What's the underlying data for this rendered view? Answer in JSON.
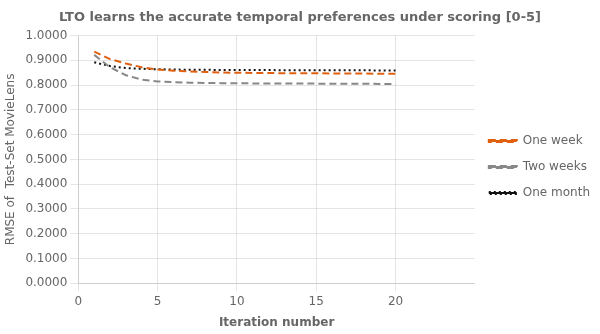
{
  "chart_data": {
    "type": "line",
    "title": "LTO learns the accurate temporal preferences under scoring [0-5]",
    "x_label": "Iteration number",
    "y_label": "RMSE of  Test-Set MovieLens",
    "x": [
      1,
      2,
      3,
      4,
      5,
      6,
      7,
      8,
      9,
      10,
      11,
      12,
      13,
      14,
      15,
      16,
      17,
      18,
      19,
      20
    ],
    "series": [
      {
        "name": "One week",
        "color": "#e06010",
        "line_style": "dashed",
        "values": [
          0.935,
          0.905,
          0.887,
          0.872,
          0.863,
          0.858,
          0.855,
          0.853,
          0.851,
          0.85,
          0.849,
          0.849,
          0.848,
          0.848,
          0.848,
          0.847,
          0.847,
          0.847,
          0.846,
          0.846
        ]
      },
      {
        "name": "Two weeks",
        "color": "#888888",
        "line_style": "dashed",
        "values": [
          0.922,
          0.872,
          0.84,
          0.822,
          0.815,
          0.812,
          0.81,
          0.809,
          0.808,
          0.808,
          0.807,
          0.807,
          0.807,
          0.807,
          0.806,
          0.806,
          0.806,
          0.806,
          0.805,
          0.805
        ]
      },
      {
        "name": "One month",
        "color": "#111111",
        "line_style": "dotted",
        "values": [
          0.892,
          0.877,
          0.869,
          0.866,
          0.864,
          0.863,
          0.862,
          0.862,
          0.861,
          0.861,
          0.861,
          0.861,
          0.86,
          0.86,
          0.86,
          0.86,
          0.86,
          0.86,
          0.859,
          0.859
        ]
      }
    ],
    "xlim": [
      0,
      25
    ],
    "xticks": [
      0,
      5,
      10,
      15,
      20
    ],
    "ylim": [
      0.0,
      1.0
    ],
    "yticks": [
      {
        "value": 0.0,
        "label": "0.0000"
      },
      {
        "value": 0.1,
        "label": "0.1000"
      },
      {
        "value": 0.2,
        "label": "0.2000"
      },
      {
        "value": 0.3,
        "label": "0.3000"
      },
      {
        "value": 0.4,
        "label": "0.4000"
      },
      {
        "value": 0.5,
        "label": "0.5000"
      },
      {
        "value": 0.6,
        "label": "0.6000"
      },
      {
        "value": 0.7,
        "label": "0.7000"
      },
      {
        "value": 0.8,
        "label": "0.8000"
      },
      {
        "value": 0.9,
        "label": "0.9000"
      },
      {
        "value": 1.0,
        "label": "1.0000"
      }
    ],
    "grid": true,
    "legend": "right"
  }
}
